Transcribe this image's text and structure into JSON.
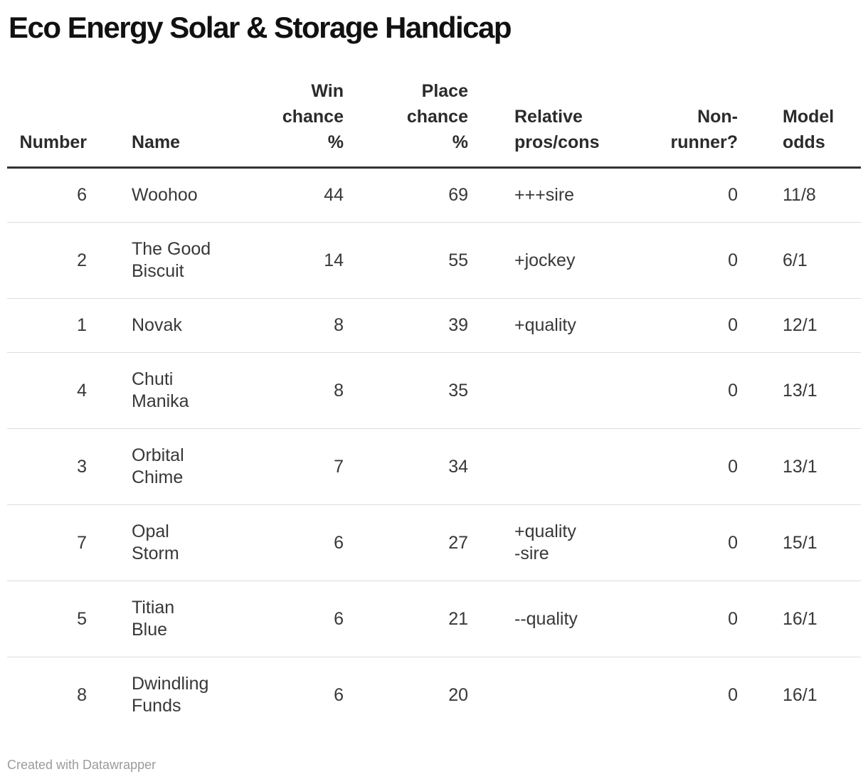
{
  "title": "Eco Energy Solar & Storage Handicap",
  "table": {
    "columns": [
      {
        "key": "number",
        "label": "Number",
        "align": "right"
      },
      {
        "key": "name",
        "label": "Name",
        "align": "left"
      },
      {
        "key": "win",
        "label": "Win\nchance\n%",
        "align": "right"
      },
      {
        "key": "place",
        "label": "Place\nchance\n%",
        "align": "right"
      },
      {
        "key": "pros",
        "label": "Relative\npros/cons",
        "align": "left"
      },
      {
        "key": "nonrunner",
        "label": "Non-\nrunner?",
        "align": "right"
      },
      {
        "key": "odds",
        "label": "Model\nodds",
        "align": "left"
      }
    ],
    "rows": [
      {
        "number": "6",
        "name": "Woohoo",
        "win": "44",
        "place": "69",
        "pros": "+++sire",
        "nonrunner": "0",
        "odds": "11/8"
      },
      {
        "number": "2",
        "name": "The Good\nBiscuit",
        "win": "14",
        "place": "55",
        "pros": "+jockey",
        "nonrunner": "0",
        "odds": "6/1"
      },
      {
        "number": "1",
        "name": "Novak",
        "win": "8",
        "place": "39",
        "pros": "+quality",
        "nonrunner": "0",
        "odds": "12/1"
      },
      {
        "number": "4",
        "name": "Chuti\nManika",
        "win": "8",
        "place": "35",
        "pros": "",
        "nonrunner": "0",
        "odds": "13/1"
      },
      {
        "number": "3",
        "name": "Orbital\nChime",
        "win": "7",
        "place": "34",
        "pros": "",
        "nonrunner": "0",
        "odds": "13/1"
      },
      {
        "number": "7",
        "name": "Opal\nStorm",
        "win": "6",
        "place": "27",
        "pros": "+quality\n-sire",
        "nonrunner": "0",
        "odds": "15/1"
      },
      {
        "number": "5",
        "name": "Titian\nBlue",
        "win": "6",
        "place": "21",
        "pros": "--quality",
        "nonrunner": "0",
        "odds": "16/1"
      },
      {
        "number": "8",
        "name": "Dwindling\nFunds",
        "win": "6",
        "place": "20",
        "pros": "",
        "nonrunner": "0",
        "odds": "16/1"
      }
    ]
  },
  "footer": {
    "credit": "Created with Datawrapper"
  },
  "colors": {
    "title_text": "#111111",
    "header_text": "#2b2b2b",
    "body_text": "#383838",
    "header_rule": "#333333",
    "row_divider": "#dddddd",
    "footer_text": "#9b9b9b",
    "background": "#ffffff"
  }
}
